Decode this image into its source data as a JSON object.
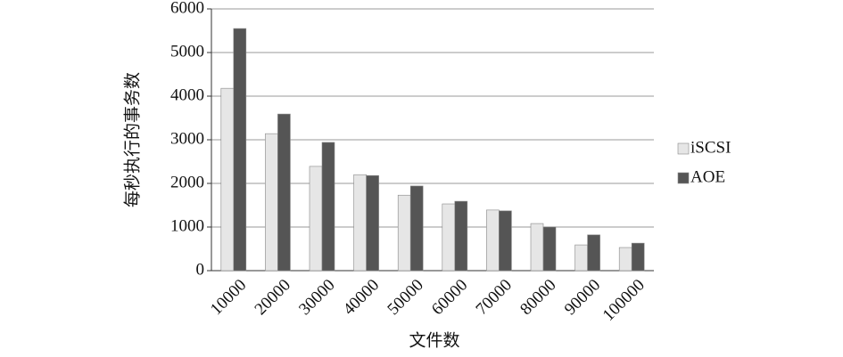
{
  "chart_data": {
    "type": "bar",
    "y_label": "每秒执行的事务数",
    "x_label": "文件数",
    "categories": [
      "10000",
      "20000",
      "30000",
      "40000",
      "50000",
      "60000",
      "70000",
      "80000",
      "90000",
      "100000"
    ],
    "series": [
      {
        "name": "iSCSI",
        "color": "#e6e6e6",
        "values": [
          4180,
          3140,
          2390,
          2200,
          1730,
          1530,
          1390,
          1080,
          590,
          530
        ]
      },
      {
        "name": "AOE",
        "color": "#555555",
        "values": [
          5550,
          3590,
          2940,
          2180,
          1940,
          1590,
          1370,
          1000,
          820,
          630
        ]
      }
    ],
    "ylim": [
      0,
      6000
    ],
    "yticks": [
      0,
      1000,
      2000,
      3000,
      4000,
      5000,
      6000
    ],
    "grid": true
  }
}
